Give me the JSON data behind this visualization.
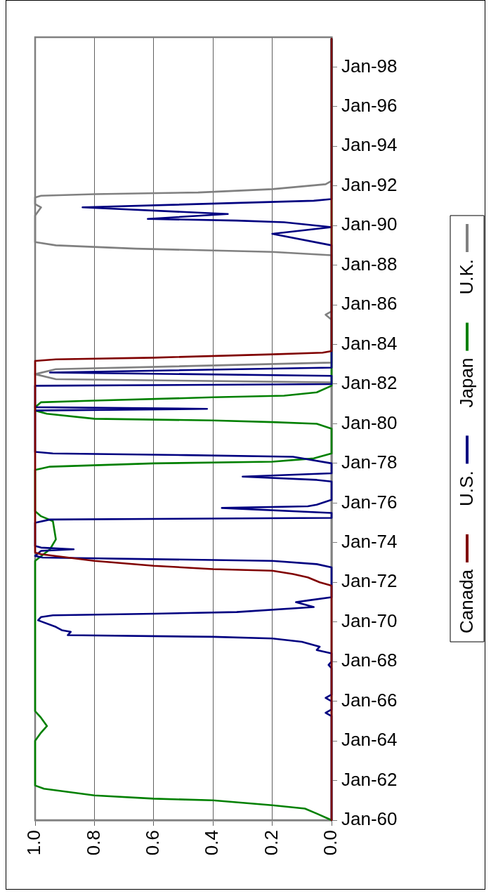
{
  "chart_data": {
    "type": "line",
    "orientation": "horizontal",
    "ylim": [
      "1960-01",
      "1999-07"
    ],
    "yticks": [
      {
        "value": "1960-01",
        "label": "Jan-60"
      },
      {
        "value": "1962-01",
        "label": "Jan-62"
      },
      {
        "value": "1964-01",
        "label": "Jan-64"
      },
      {
        "value": "1966-01",
        "label": "Jan-66"
      },
      {
        "value": "1968-01",
        "label": "Jan-68"
      },
      {
        "value": "1970-01",
        "label": "Jan-70"
      },
      {
        "value": "1972-01",
        "label": "Jan-72"
      },
      {
        "value": "1974-01",
        "label": "Jan-74"
      },
      {
        "value": "1976-01",
        "label": "Jan-76"
      },
      {
        "value": "1978-01",
        "label": "Jan-78"
      },
      {
        "value": "1980-01",
        "label": "Jan-80"
      },
      {
        "value": "1982-01",
        "label": "Jan-82"
      },
      {
        "value": "1984-01",
        "label": "Jan-84"
      },
      {
        "value": "1986-01",
        "label": "Jan-86"
      },
      {
        "value": "1988-01",
        "label": "Jan-88"
      },
      {
        "value": "1990-01",
        "label": "Jan-90"
      },
      {
        "value": "1992-01",
        "label": "Jan-92"
      },
      {
        "value": "1994-01",
        "label": "Jan-94"
      },
      {
        "value": "1996-01",
        "label": "Jan-96"
      },
      {
        "value": "1998-01",
        "label": "Jan-98"
      }
    ],
    "xlim": [
      1,
      0
    ],
    "xticks": [
      {
        "value": 0,
        "label": "0.0"
      },
      {
        "value": 0.2,
        "label": "0.2"
      },
      {
        "value": 0.4,
        "label": "0.4"
      },
      {
        "value": 0.6,
        "label": "0.6"
      },
      {
        "value": 0.8,
        "label": "0.8"
      },
      {
        "value": 1,
        "label": "1.0"
      }
    ],
    "grid": "x",
    "legend": "right",
    "marker": "none",
    "line_style": "solid",
    "series": [
      {
        "name": "Canada",
        "color": "#800000",
        "x": [
          "1960-01",
          "1971-11",
          "1972-01",
          "1972-04",
          "1972-06",
          "1972-08",
          "1972-09",
          "1972-11",
          "1973-02",
          "1973-06",
          "1973-07",
          "1983-03",
          "1983-04",
          "1983-05",
          "1983-07",
          "1983-08",
          "1983-09",
          "1999-06"
        ],
        "values": [
          0,
          0,
          0.04,
          0.08,
          0.13,
          0.2,
          0.4,
          0.6,
          0.8,
          0.98,
          1,
          1,
          0.93,
          0.6,
          0.2,
          0.03,
          0,
          0
        ]
      },
      {
        "name": "U.S.",
        "color": "#000080",
        "x": [
          "1960-01",
          "1965-04",
          "1965-06",
          "1965-08",
          "1966-01",
          "1966-03",
          "1966-05",
          "1967-09",
          "1967-11",
          "1968-01",
          "1968-06",
          "1968-08",
          "1968-10",
          "1969-01",
          "1969-03",
          "1969-04",
          "1969-05",
          "1969-07",
          "1969-08",
          "1969-10",
          "1970-02",
          "1970-04",
          "1970-05",
          "1970-06",
          "1970-07",
          "1970-10",
          "1971-01",
          "1971-02",
          "1971-04",
          "1972-10",
          "1972-12",
          "1973-02",
          "1973-03",
          "1973-04",
          "1973-05",
          "1973-08",
          "1973-09",
          "1973-10",
          "1973-11",
          "1975-01",
          "1975-03",
          "1975-04",
          "1975-07",
          "1975-10",
          "1975-11",
          "1975-12",
          "1976-03",
          "1977-02",
          "1977-03",
          "1977-05",
          "1977-07",
          "1978-01",
          "1978-05",
          "1978-06",
          "1978-07",
          "1978-08",
          "1980-09",
          "1980-10",
          "1980-11",
          "1981-12",
          "1982-01",
          "1982-06",
          "1982-08",
          "1982-11",
          "1989-01",
          "1989-08",
          "1989-12",
          "1990-03",
          "1990-04",
          "1990-05",
          "1990-08",
          "1990-12",
          "1991-04",
          "1991-05",
          "1999-06"
        ],
        "values": [
          0,
          0,
          0.02,
          0,
          0,
          0.02,
          0,
          0,
          0.01,
          0,
          0,
          0.05,
          0.04,
          0.1,
          0.2,
          0.4,
          0.89,
          0.88,
          0.91,
          0.93,
          0.99,
          0.98,
          0.94,
          0.6,
          0.32,
          0.06,
          0.12,
          0.08,
          0,
          0,
          0.05,
          0.2,
          0.6,
          0.975,
          1,
          0.98,
          0.87,
          0.98,
          1,
          1,
          0.95,
          0,
          0,
          0.37,
          0.08,
          0.05,
          0,
          0,
          0.05,
          0.3,
          0,
          0,
          0.13,
          0.49,
          0.94,
          1,
          1,
          0.42,
          1,
          1,
          0,
          0,
          0.95,
          0,
          0,
          0.2,
          0,
          0.16,
          0.32,
          0.62,
          0.35,
          0.84,
          0.06,
          0,
          0
        ]
      },
      {
        "name": "Japan",
        "color": "#008000",
        "x": [
          "1960-01",
          "1960-05",
          "1960-08",
          "1960-10",
          "1961-01",
          "1961-02",
          "1961-04",
          "1961-08",
          "1961-10",
          "1964-01",
          "1964-06",
          "1964-10",
          "1965-03",
          "1965-07",
          "1973-02",
          "1973-09",
          "1974-03",
          "1975-02",
          "1975-05",
          "1975-08",
          "1977-09",
          "1977-11",
          "1978-01",
          "1978-02",
          "1978-04",
          "1978-07",
          "1979-10",
          "1980-01",
          "1980-02",
          "1980-03",
          "1980-04",
          "1980-07",
          "1980-09",
          "1980-11",
          "1981-02",
          "1981-03",
          "1981-05",
          "1981-06",
          "1981-08",
          "1981-12",
          "1999-06"
        ],
        "values": [
          0,
          0.05,
          0.09,
          0.2,
          0.4,
          0.6,
          0.8,
          0.97,
          1,
          1,
          0.98,
          0.96,
          0.98,
          1,
          1,
          0.95,
          0.93,
          0.94,
          0.98,
          1,
          1,
          0.95,
          0.6,
          0.2,
          0.06,
          0,
          0,
          0.05,
          0.2,
          0.4,
          0.8,
          0.96,
          1,
          1,
          0.98,
          0.8,
          0.4,
          0.16,
          0.05,
          0,
          0
        ]
      },
      {
        "name": "U.K.",
        "color": "#808080",
        "x": [
          "1960-01",
          "1982-02",
          "1982-04",
          "1982-07",
          "1982-10",
          "1983-02",
          "1985-04",
          "1985-07",
          "1985-09",
          "1988-07",
          "1988-09",
          "1988-11",
          "1989-01",
          "1989-03",
          "1990-07",
          "1990-12",
          "1991-02",
          "1991-06",
          "1991-07",
          "1991-08",
          "1991-09",
          "1991-11",
          "1992-02",
          "1992-04",
          "1999-06"
        ],
        "values": [
          0,
          0,
          0.93,
          1,
          0.93,
          0,
          0,
          0.02,
          0,
          0,
          0.2,
          0.66,
          0.93,
          1,
          1,
          0.98,
          1,
          1,
          0.98,
          0.8,
          0.45,
          0.2,
          0.02,
          0,
          0
        ]
      }
    ]
  }
}
